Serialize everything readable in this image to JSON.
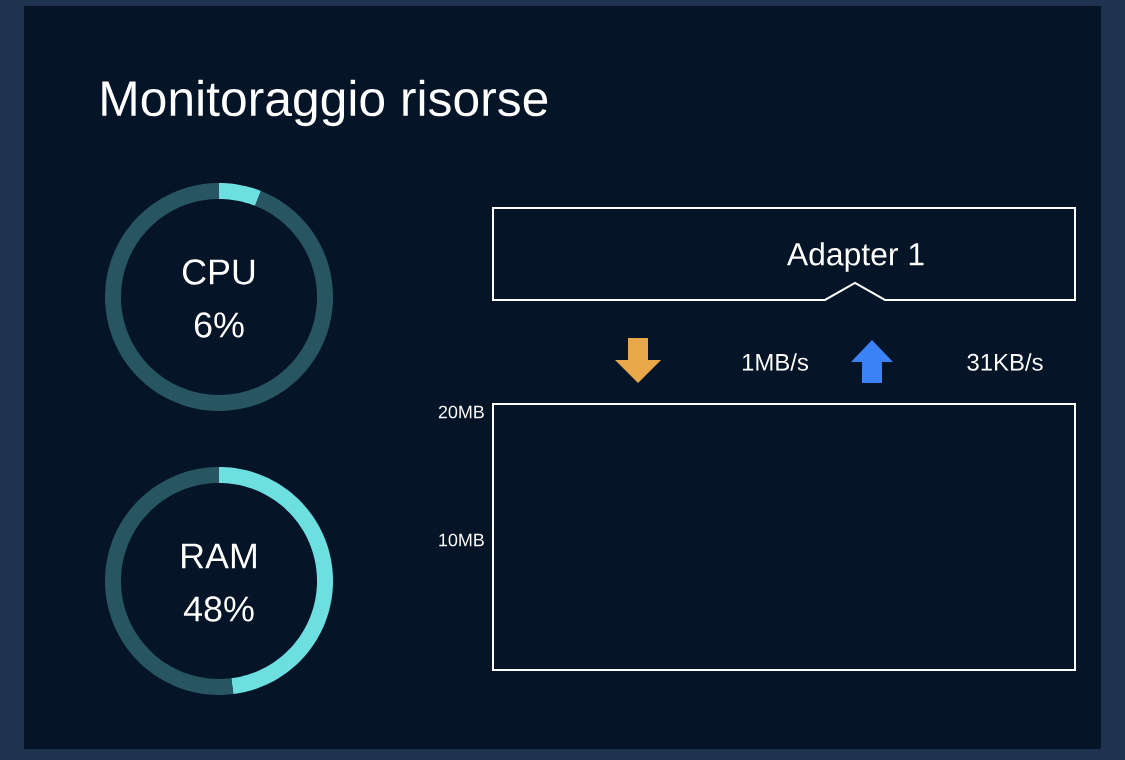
{
  "chart_data": [
    {
      "type": "other",
      "title": "Monitoraggio risorse"
    },
    {
      "type": "donut",
      "title": "CPU",
      "categories": [
        null,
        null
      ],
      "values": [
        6,
        94
      ],
      "colors": [
        "#6ddfe0",
        "#275662"
      ],
      "annotations": [
        "6%"
      ]
    },
    {
      "type": "donut",
      "title": "RAM",
      "categories": [
        null,
        null
      ],
      "values": [
        48,
        52
      ],
      "colors": [
        "#6ddfe0",
        "#275662"
      ],
      "annotations": [
        "48%"
      ]
    },
    {
      "type": "other",
      "title": "Adapter 1",
      "annotations": [
        "1MB/s",
        "31KB/s",
        "20MB",
        "10MB"
      ]
    }
  ]
}
